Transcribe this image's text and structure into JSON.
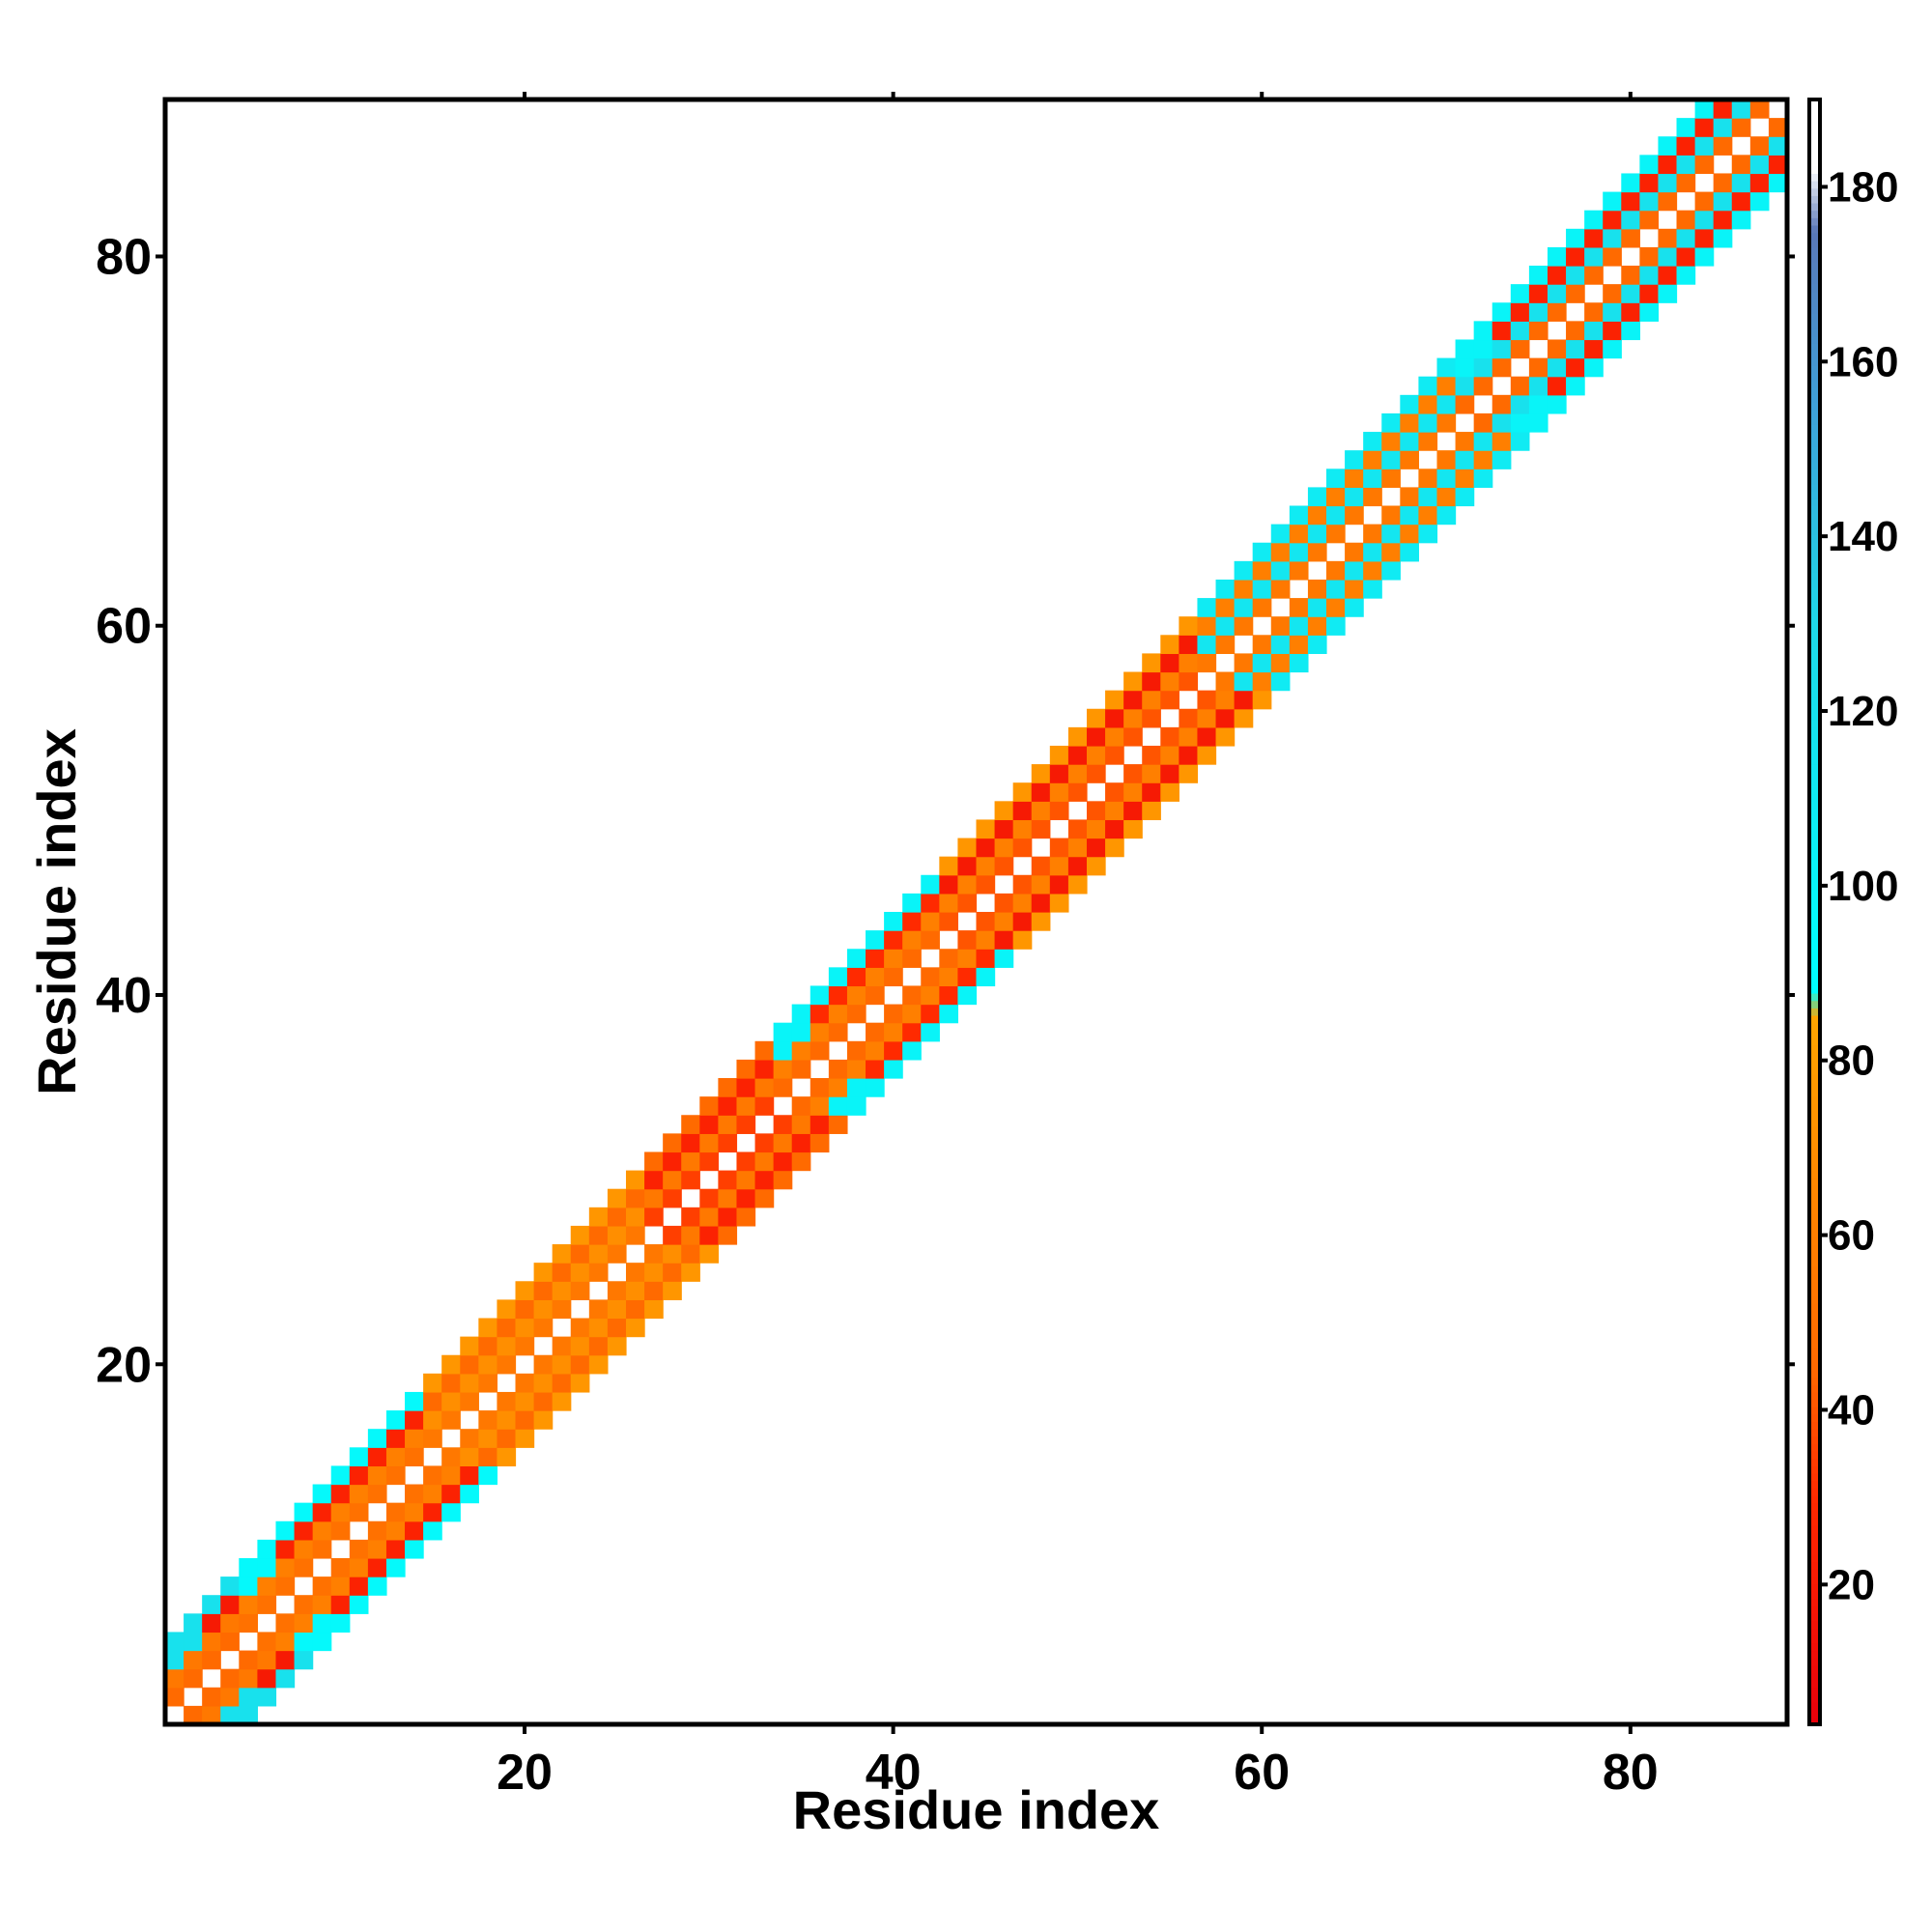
{
  "chart_data": {
    "type": "heatmap",
    "title": "",
    "xlabel": "Residue index",
    "ylabel": "Residue index",
    "n_residues": 88,
    "xlim": [
      0.5,
      88.5
    ],
    "ylim": [
      0.5,
      88.5
    ],
    "xticks": [
      20,
      40,
      60,
      80
    ],
    "yticks": [
      20,
      40,
      60,
      80
    ],
    "grid": false,
    "legend": "colorbar-right",
    "colorbar": {
      "range": [
        4,
        190
      ],
      "ticks": [
        20,
        40,
        60,
        80,
        100,
        120,
        140,
        160,
        180
      ],
      "stops": [
        {
          "value": 4,
          "color": "#e8000b"
        },
        {
          "value": 30,
          "color": "#ff2a00"
        },
        {
          "value": 45,
          "color": "#ff6a00"
        },
        {
          "value": 60,
          "color": "#ff7f00"
        },
        {
          "value": 85,
          "color": "#ffa500"
        },
        {
          "value": 88,
          "color": "#00ffff"
        },
        {
          "value": 130,
          "color": "#1fd8e8"
        },
        {
          "value": 155,
          "color": "#3fa0d8"
        },
        {
          "value": 175,
          "color": "#5a78b8"
        },
        {
          "value": 182,
          "color": "#ffffff"
        },
        {
          "value": 190,
          "color": "#ffffff"
        }
      ]
    },
    "band_offset_values": {
      "description_free": true,
      "diagonal": null,
      "offset_1": 40,
      "offset_2": 55,
      "offset_3": 30,
      "offset_4": 50
    },
    "segments": [
      {
        "residues": [
          1,
          4
        ],
        "offset_values": [
          null,
          45,
          55,
          20,
          60
        ],
        "edge_value": 120
      },
      {
        "residues": [
          5,
          14
        ],
        "offset_values": [
          null,
          50,
          60,
          25,
          55
        ],
        "edge_value": 95
      },
      {
        "residues": [
          15,
          26
        ],
        "offset_values": [
          null,
          55,
          70,
          45,
          75
        ],
        "edge_value": null
      },
      {
        "residues": [
          27,
          33
        ],
        "offset_values": [
          null,
          35,
          55,
          25,
          45
        ],
        "edge_value": null
      },
      {
        "residues": [
          34,
          42
        ],
        "offset_values": [
          null,
          45,
          60,
          30,
          50
        ],
        "edge_value": 100
      },
      {
        "residues": [
          43,
          56
        ],
        "offset_values": [
          null,
          40,
          60,
          20,
          75
        ],
        "edge_value": null
      },
      {
        "residues": [
          57,
          70
        ],
        "offset_values": [
          null,
          55,
          115,
          60,
          110
        ],
        "edge_value": null
      },
      {
        "residues": [
          71,
          88
        ],
        "offset_values": [
          null,
          45,
          120,
          25,
          110
        ],
        "edge_value": 100
      }
    ]
  }
}
